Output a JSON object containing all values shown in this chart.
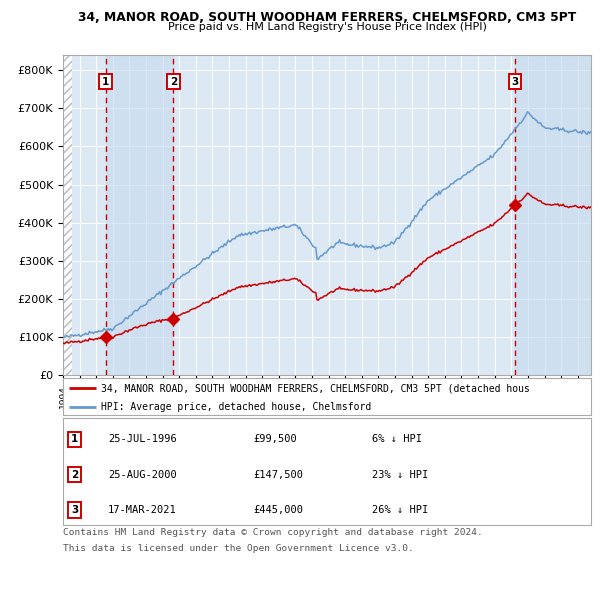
{
  "title_line1": "34, MANOR ROAD, SOUTH WOODHAM FERRERS, CHELMSFORD, CM3 5PT",
  "title_line2": "Price paid vs. HM Land Registry's House Price Index (HPI)",
  "xlim": [
    1994.0,
    2025.8
  ],
  "ylim": [
    0,
    840000
  ],
  "yticks": [
    0,
    100000,
    200000,
    300000,
    400000,
    500000,
    600000,
    700000,
    800000
  ],
  "ytick_labels": [
    "£0",
    "£100K",
    "£200K",
    "£300K",
    "£400K",
    "£500K",
    "£600K",
    "£700K",
    "£800K"
  ],
  "background_color": "#ffffff",
  "plot_bg_color": "#dce9f5",
  "sale_events": [
    {
      "date_num": 1996.56,
      "price": 99500,
      "label": "1",
      "date_str": "25-JUL-1996",
      "price_str": "£99,500",
      "hpi_str": "6% ↓ HPI"
    },
    {
      "date_num": 2000.65,
      "price": 147500,
      "label": "2",
      "date_str": "25-AUG-2000",
      "price_str": "£147,500",
      "hpi_str": "23% ↓ HPI"
    },
    {
      "date_num": 2021.21,
      "price": 445000,
      "label": "3",
      "date_str": "17-MAR-2021",
      "price_str": "£445,000",
      "hpi_str": "26% ↓ HPI"
    }
  ],
  "legend_red_label": "34, MANOR ROAD, SOUTH WOODHAM FERRERS, CHELMSFORD, CM3 5PT (detached hous",
  "legend_blue_label": "HPI: Average price, detached house, Chelmsford",
  "footer_line1": "Contains HM Land Registry data © Crown copyright and database right 2024.",
  "footer_line2": "This data is licensed under the Open Government Licence v3.0.",
  "red_color": "#cc0000",
  "blue_color": "#6699cc",
  "shaded_color": "#c5d9ee",
  "grid_color": "#ffffff",
  "spine_color": "#aaaaaa"
}
